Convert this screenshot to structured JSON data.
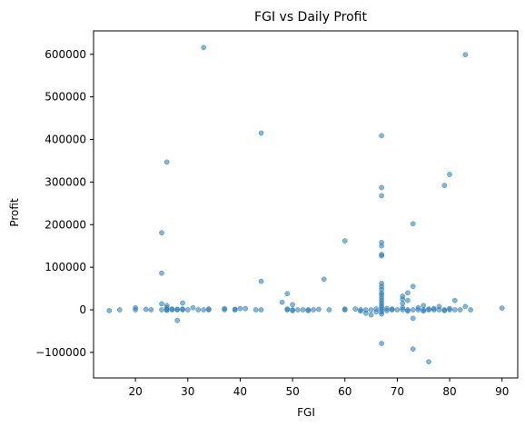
{
  "chart_data": {
    "type": "scatter",
    "title": "FGI vs Daily Profit",
    "xlabel": "FGI",
    "ylabel": "Profit",
    "xlim": [
      12,
      93
    ],
    "ylim": [
      -160000,
      655000
    ],
    "xticks": [
      20,
      30,
      40,
      50,
      60,
      70,
      80,
      90
    ],
    "yticks": [
      -100000,
      0,
      100000,
      200000,
      300000,
      400000,
      500000,
      600000
    ],
    "grid": false,
    "point_color": "#1f77b4",
    "point_opacity": 0.55,
    "points": [
      [
        15,
        -2000
      ],
      [
        17,
        0
      ],
      [
        20,
        5000
      ],
      [
        20,
        0
      ],
      [
        22,
        1000
      ],
      [
        23,
        0
      ],
      [
        25,
        181000
      ],
      [
        25,
        86000
      ],
      [
        25,
        14000
      ],
      [
        25,
        0
      ],
      [
        26,
        347000
      ],
      [
        26,
        10000
      ],
      [
        26,
        5000
      ],
      [
        26,
        0
      ],
      [
        26,
        -1000
      ],
      [
        27,
        0
      ],
      [
        27,
        2000
      ],
      [
        28,
        -25000
      ],
      [
        28,
        0
      ],
      [
        28,
        1000
      ],
      [
        29,
        16000
      ],
      [
        29,
        0
      ],
      [
        29,
        2000
      ],
      [
        30,
        0
      ],
      [
        31,
        5000
      ],
      [
        32,
        0
      ],
      [
        33,
        616000
      ],
      [
        33,
        0
      ],
      [
        34,
        0
      ],
      [
        34,
        2000
      ],
      [
        37,
        0
      ],
      [
        37,
        3000
      ],
      [
        39,
        0
      ],
      [
        39,
        1000
      ],
      [
        40,
        3000
      ],
      [
        41,
        3000
      ],
      [
        43,
        0
      ],
      [
        44,
        415000
      ],
      [
        44,
        67000
      ],
      [
        44,
        0
      ],
      [
        48,
        18000
      ],
      [
        49,
        38000
      ],
      [
        49,
        0
      ],
      [
        49,
        2000
      ],
      [
        50,
        0
      ],
      [
        50,
        12000
      ],
      [
        50,
        -2000
      ],
      [
        51,
        0
      ],
      [
        52,
        0
      ],
      [
        53,
        0
      ],
      [
        53,
        -2000
      ],
      [
        54,
        0
      ],
      [
        55,
        1000
      ],
      [
        56,
        72000
      ],
      [
        57,
        0
      ],
      [
        60,
        162000
      ],
      [
        60,
        0
      ],
      [
        60,
        2000
      ],
      [
        62,
        2000
      ],
      [
        63,
        0
      ],
      [
        63,
        -3000
      ],
      [
        64,
        -8000
      ],
      [
        64,
        0
      ],
      [
        65,
        -12000
      ],
      [
        65,
        0
      ],
      [
        66,
        -5000
      ],
      [
        66,
        2000
      ],
      [
        67,
        409000
      ],
      [
        67,
        287000
      ],
      [
        67,
        268000
      ],
      [
        67,
        158000
      ],
      [
        67,
        150000
      ],
      [
        67,
        130000
      ],
      [
        67,
        127000
      ],
      [
        67,
        62000
      ],
      [
        67,
        55000
      ],
      [
        67,
        48000
      ],
      [
        67,
        40000
      ],
      [
        67,
        35000
      ],
      [
        67,
        28000
      ],
      [
        67,
        22000
      ],
      [
        67,
        16000
      ],
      [
        67,
        10000
      ],
      [
        67,
        5000
      ],
      [
        67,
        0
      ],
      [
        67,
        -5000
      ],
      [
        67,
        -10000
      ],
      [
        67,
        -79000
      ],
      [
        68,
        3000
      ],
      [
        68,
        -2000
      ],
      [
        69,
        0
      ],
      [
        69,
        2000
      ],
      [
        70,
        0
      ],
      [
        71,
        32000
      ],
      [
        71,
        25000
      ],
      [
        71,
        15000
      ],
      [
        71,
        5000
      ],
      [
        71,
        0
      ],
      [
        72,
        40000
      ],
      [
        72,
        22000
      ],
      [
        72,
        0
      ],
      [
        72,
        -3000
      ],
      [
        73,
        202000
      ],
      [
        73,
        55000
      ],
      [
        73,
        0
      ],
      [
        73,
        -20000
      ],
      [
        73,
        -92000
      ],
      [
        74,
        5000
      ],
      [
        74,
        0
      ],
      [
        75,
        10000
      ],
      [
        75,
        0
      ],
      [
        75,
        -3000
      ],
      [
        76,
        0
      ],
      [
        76,
        2000
      ],
      [
        76,
        -122000
      ],
      [
        77,
        0
      ],
      [
        77,
        3000
      ],
      [
        78,
        0
      ],
      [
        78,
        8000
      ],
      [
        79,
        292000
      ],
      [
        79,
        0
      ],
      [
        79,
        -2000
      ],
      [
        80,
        318000
      ],
      [
        80,
        0
      ],
      [
        80,
        3000
      ],
      [
        81,
        22000
      ],
      [
        81,
        0
      ],
      [
        82,
        0
      ],
      [
        83,
        599000
      ],
      [
        83,
        8000
      ],
      [
        84,
        0
      ],
      [
        90,
        4000
      ]
    ]
  }
}
